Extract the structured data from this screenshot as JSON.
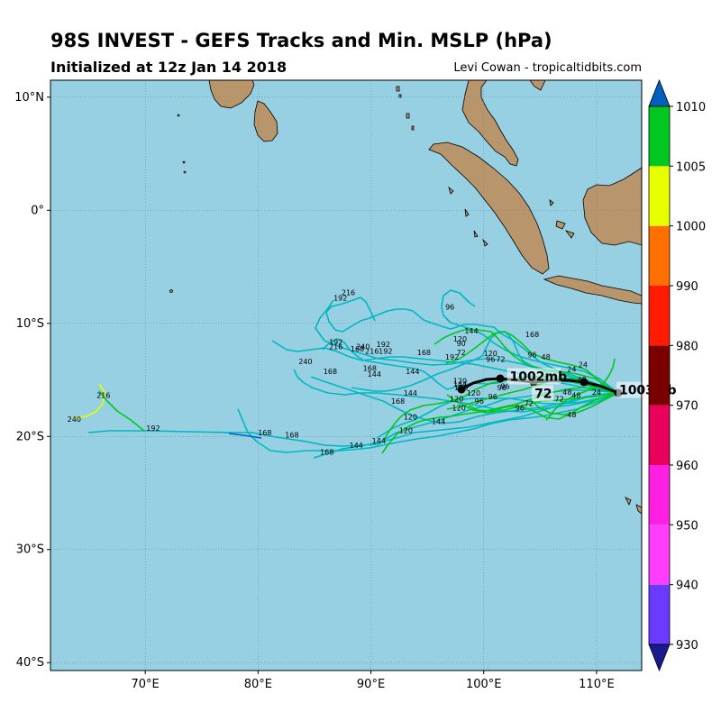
{
  "title": "98S INVEST - GEFS Tracks and Min. MSLP (hPa)",
  "subtitle": "Initialized at 12z Jan 14 2018",
  "credit": "Levi Cowan - tropicaltidbits.com",
  "lat_ticks": [
    "10°N",
    "0°",
    "10°S",
    "20°S",
    "30°S",
    "40°S"
  ],
  "lon_ticks": [
    "70°E",
    "80°E",
    "90°E",
    "100°E",
    "110°E"
  ],
  "colorbar": {
    "tick_labels": [
      "930",
      "940",
      "950",
      "960",
      "970",
      "980",
      "990",
      "1000",
      "1005",
      "1010"
    ],
    "colors": [
      "#1a1a8c",
      "#6a3bff",
      "#ff3dff",
      "#ff1fe0",
      "#e8005a",
      "#7a0000",
      "#ff1a00",
      "#ff7000",
      "#e8ff00",
      "#00c820",
      "#00b8c0",
      "#0060c0"
    ]
  },
  "map_colors": {
    "ocean": "#97cfe3",
    "land": "#b8956a"
  },
  "markers": [
    {
      "label": "1002mb",
      "lat": -15.0,
      "lon": 102.3
    },
    {
      "label": "1003mb",
      "lat": -16.2,
      "lon": 112.0
    },
    {
      "label": "72",
      "lat": -16.5,
      "lon": 104.5
    }
  ],
  "forecast_hours": [
    {
      "text": "216",
      "lat": -7.5,
      "lon": 88.0
    },
    {
      "text": "192",
      "lat": -8.0,
      "lon": 87.3
    },
    {
      "text": "96",
      "lat": -8.8,
      "lon": 97.0
    },
    {
      "text": "144",
      "lat": -10.9,
      "lon": 98.9
    },
    {
      "text": "168",
      "lat": -11.2,
      "lon": 104.3
    },
    {
      "text": "120",
      "lat": -11.6,
      "lon": 97.9
    },
    {
      "text": "90",
      "lat": -12.0,
      "lon": 98.0
    },
    {
      "text": "192",
      "lat": -11.9,
      "lon": 86.9
    },
    {
      "text": "216",
      "lat": -12.3,
      "lon": 86.9
    },
    {
      "text": "240",
      "lat": -12.3,
      "lon": 89.3
    },
    {
      "text": "168",
      "lat": -12.5,
      "lon": 88.8
    },
    {
      "text": "216",
      "lat": -12.7,
      "lon": 90.1
    },
    {
      "text": "192",
      "lat": -12.7,
      "lon": 91.3
    },
    {
      "text": "192",
      "lat": -12.1,
      "lon": 91.1
    },
    {
      "text": "168",
      "lat": -12.8,
      "lon": 94.7
    },
    {
      "text": "120",
      "lat": -12.9,
      "lon": 100.6
    },
    {
      "text": "192",
      "lat": -13.2,
      "lon": 97.2
    },
    {
      "text": "72",
      "lat": -12.8,
      "lon": 98.0
    },
    {
      "text": "96",
      "lat": -13.0,
      "lon": 104.3
    },
    {
      "text": "48",
      "lat": -13.2,
      "lon": 105.5
    },
    {
      "text": "240",
      "lat": -13.6,
      "lon": 84.2
    },
    {
      "text": "96",
      "lat": -13.4,
      "lon": 100.6
    },
    {
      "text": "72",
      "lat": -13.4,
      "lon": 101.5
    },
    {
      "text": "168",
      "lat": -14.2,
      "lon": 89.9
    },
    {
      "text": "168",
      "lat": -14.5,
      "lon": 86.4
    },
    {
      "text": "144",
      "lat": -14.5,
      "lon": 93.7
    },
    {
      "text": "144",
      "lat": -14.7,
      "lon": 90.3
    },
    {
      "text": "24",
      "lat": -13.9,
      "lon": 108.8
    },
    {
      "text": "24",
      "lat": -14.3,
      "lon": 107.8
    },
    {
      "text": "120",
      "lat": -15.3,
      "lon": 97.9
    },
    {
      "text": "144",
      "lat": -15.6,
      "lon": 97.9
    },
    {
      "text": "120",
      "lat": -15.9,
      "lon": 98.0
    },
    {
      "text": "96",
      "lat": -15.9,
      "lon": 101.6
    },
    {
      "text": "96",
      "lat": -15.8,
      "lon": 101.9
    },
    {
      "text": "48",
      "lat": -15.2,
      "lon": 108.7
    },
    {
      "text": "24",
      "lat": -16.3,
      "lon": 110.0
    },
    {
      "text": "144",
      "lat": -16.4,
      "lon": 93.5
    },
    {
      "text": "120",
      "lat": -16.4,
      "lon": 99.1
    },
    {
      "text": "96",
      "lat": -16.7,
      "lon": 100.8
    },
    {
      "text": "48",
      "lat": -16.3,
      "lon": 107.4
    },
    {
      "text": "48",
      "lat": -16.6,
      "lon": 108.2
    },
    {
      "text": "120",
      "lat": -16.9,
      "lon": 97.6
    },
    {
      "text": "168",
      "lat": -17.1,
      "lon": 92.4
    },
    {
      "text": "96",
      "lat": -17.1,
      "lon": 99.6
    },
    {
      "text": "72",
      "lat": -16.9,
      "lon": 106.7
    },
    {
      "text": "216",
      "lat": -16.6,
      "lon": 66.3
    },
    {
      "text": "120",
      "lat": -17.7,
      "lon": 97.8
    },
    {
      "text": "96",
      "lat": -17.7,
      "lon": 103.2
    },
    {
      "text": "72",
      "lat": -17.3,
      "lon": 104.0
    },
    {
      "text": "48",
      "lat": -18.3,
      "lon": 107.8
    },
    {
      "text": "240",
      "lat": -18.7,
      "lon": 63.7
    },
    {
      "text": "120",
      "lat": -18.5,
      "lon": 93.5
    },
    {
      "text": "144",
      "lat": -18.9,
      "lon": 96.0
    },
    {
      "text": "192",
      "lat": -19.5,
      "lon": 70.7
    },
    {
      "text": "120",
      "lat": -19.7,
      "lon": 93.1
    },
    {
      "text": "168",
      "lat": -19.9,
      "lon": 80.6
    },
    {
      "text": "168",
      "lat": -20.1,
      "lon": 83.0
    },
    {
      "text": "144",
      "lat": -20.6,
      "lon": 90.7
    },
    {
      "text": "144",
      "lat": -21.0,
      "lon": 88.7
    },
    {
      "text": "168",
      "lat": -21.6,
      "lon": 86.1
    }
  ]
}
